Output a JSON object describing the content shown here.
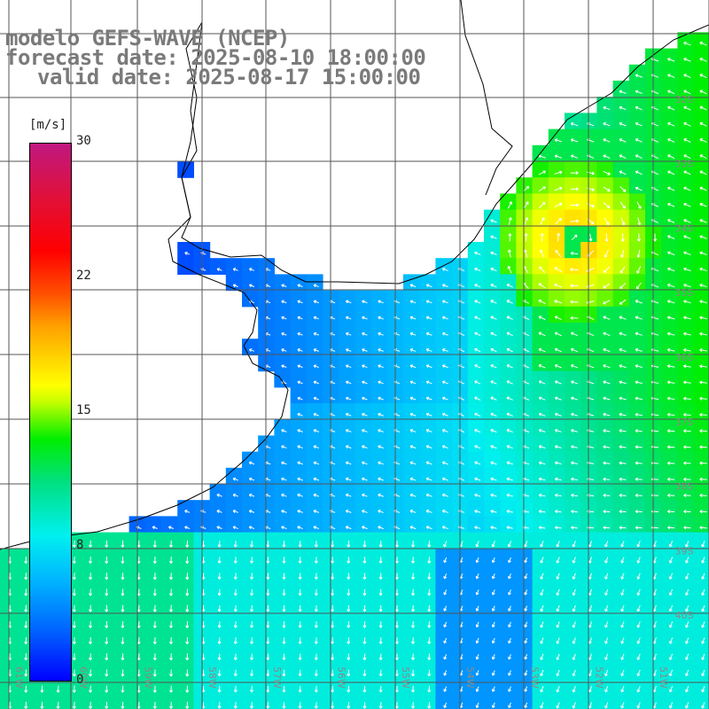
{
  "title": {
    "model": "modelo GEFS-WAVE (NCEP)",
    "forecast": "forecast date: 2025-08-10 18:00:00",
    "valid": "valid date: 2025-08-17 15:00:00"
  },
  "colorbar": {
    "unit": "[m/s]",
    "min": 0,
    "max": 30,
    "ticks": [
      {
        "value": 30,
        "label": "30"
      },
      {
        "value": 22,
        "label": "22"
      },
      {
        "value": 15,
        "label": "15"
      },
      {
        "value": 8,
        "label": "8"
      },
      {
        "value": 0,
        "label": "0"
      }
    ]
  },
  "map": {
    "variable": "wind speed and direction",
    "lon_range": [
      -61,
      -50
    ],
    "lat_range": [
      -41,
      -30
    ],
    "lat_labels": [
      {
        "lat": -32,
        "label": "32S"
      },
      {
        "lat": -33,
        "label": "33S"
      },
      {
        "lat": -34,
        "label": "34S"
      },
      {
        "lat": -35,
        "label": "35S"
      },
      {
        "lat": -36,
        "label": "36S"
      },
      {
        "lat": -37,
        "label": "37S"
      },
      {
        "lat": -38,
        "label": "38S"
      },
      {
        "lat": -39,
        "label": "39S"
      },
      {
        "lat": -40,
        "label": "40S"
      }
    ],
    "lon_labels": [
      {
        "lon": -61,
        "label": "61W"
      },
      {
        "lon": -60,
        "label": "60W"
      },
      {
        "lon": -59,
        "label": "59W"
      },
      {
        "lon": -58,
        "label": "58W"
      },
      {
        "lon": -57,
        "label": "57W"
      },
      {
        "lon": -56,
        "label": "56W"
      },
      {
        "lon": -55,
        "label": "55W"
      },
      {
        "lon": -54,
        "label": "54W"
      },
      {
        "lon": -53,
        "label": "53W"
      },
      {
        "lon": -52,
        "label": "52W"
      },
      {
        "lon": -51,
        "label": "51W"
      }
    ],
    "colors": {
      "land": "#ffffff",
      "coast": "#000000",
      "grid": "#555555",
      "arrow": "#ffffff",
      "label": "#8a8a8a"
    }
  }
}
